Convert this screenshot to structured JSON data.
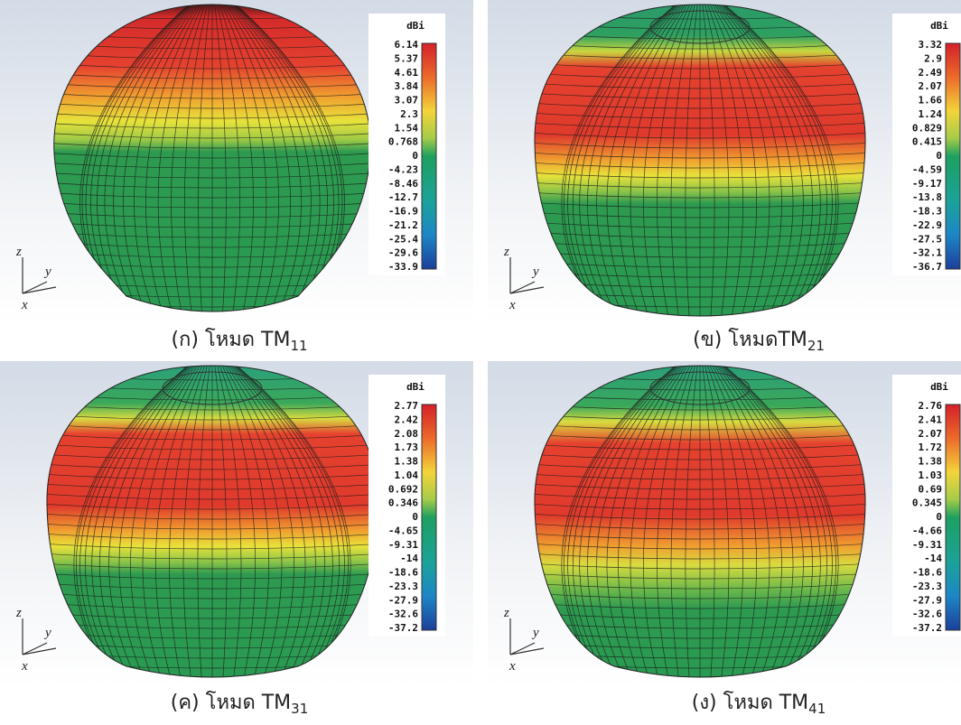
{
  "panels": [
    {
      "caption": "(ก) โหมด TM",
      "caption_sub": "11",
      "unit": "dBi",
      "axes": [
        "z",
        "y",
        "x"
      ],
      "scale_labels": [
        "6.14",
        "5.37",
        "4.61",
        "3.84",
        "3.07",
        "2.3",
        "1.54",
        "0.768",
        "0",
        "-4.23",
        "-8.46",
        "-12.7",
        "-16.9",
        "-21.2",
        "-25.4",
        "-29.6",
        "-33.9"
      ]
    },
    {
      "caption": "(ข) โหมดTM",
      "caption_sub": "21",
      "unit": "dBi",
      "axes": [
        "z",
        "y",
        "x"
      ],
      "scale_labels": [
        "3.32",
        "2.9",
        "2.49",
        "2.07",
        "1.66",
        "1.24",
        "0.829",
        "0.415",
        "0",
        "-4.59",
        "-9.17",
        "-13.8",
        "-18.3",
        "-22.9",
        "-27.5",
        "-32.1",
        "-36.7"
      ]
    },
    {
      "caption": "(ค)  โหมด TM",
      "caption_sub": "31",
      "unit": "dBi",
      "axes": [
        "z",
        "y",
        "x"
      ],
      "scale_labels": [
        "2.77",
        "2.42",
        "2.08",
        "1.73",
        "1.38",
        "1.04",
        "0.692",
        "0.346",
        "0",
        "-4.65",
        "-9.31",
        "-14",
        "-18.6",
        "-23.3",
        "-27.9",
        "-32.6",
        "-37.2"
      ]
    },
    {
      "caption": "(ง) โหมด TM",
      "caption_sub": "41",
      "unit": "dBi",
      "axes": [
        "z",
        "y",
        "x"
      ],
      "scale_labels": [
        "2.76",
        "2.41",
        "2.07",
        "1.72",
        "1.38",
        "1.03",
        "0.69",
        "0.345",
        "0",
        "-4.66",
        "-9.31",
        "-14",
        "-18.6",
        "-23.3",
        "-27.9",
        "-32.6",
        "-37.2"
      ]
    }
  ]
}
